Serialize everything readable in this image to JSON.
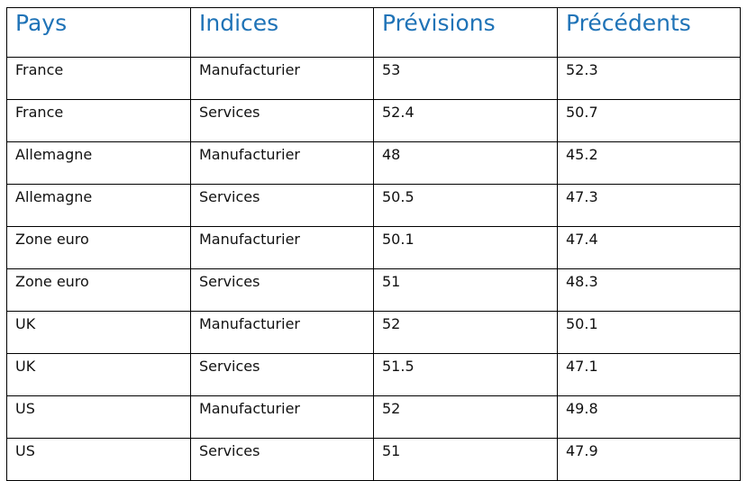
{
  "table": {
    "headers": [
      "Pays",
      "Indices",
      "Prévisions",
      "Précédents"
    ],
    "rows": [
      [
        "France",
        "Manufacturier",
        "53",
        "52.3"
      ],
      [
        "France",
        "Services",
        "52.4",
        "50.7"
      ],
      [
        "Allemagne",
        "Manufacturier",
        "48",
        "45.2"
      ],
      [
        "Allemagne",
        "Services",
        "50.5",
        "47.3"
      ],
      [
        "Zone euro",
        "Manufacturier",
        "50.1",
        "47.4"
      ],
      [
        "Zone euro",
        "Services",
        "51",
        "48.3"
      ],
      [
        "UK",
        "Manufacturier",
        "52",
        "50.1"
      ],
      [
        "UK",
        "Services",
        "51.5",
        "47.1"
      ],
      [
        "US",
        "Manufacturier",
        "52",
        "49.8"
      ],
      [
        "US",
        "Services",
        "51",
        "47.9"
      ]
    ]
  },
  "colors": {
    "header_text": "#1f73b7",
    "cell_text": "#111111",
    "border": "#000000"
  }
}
